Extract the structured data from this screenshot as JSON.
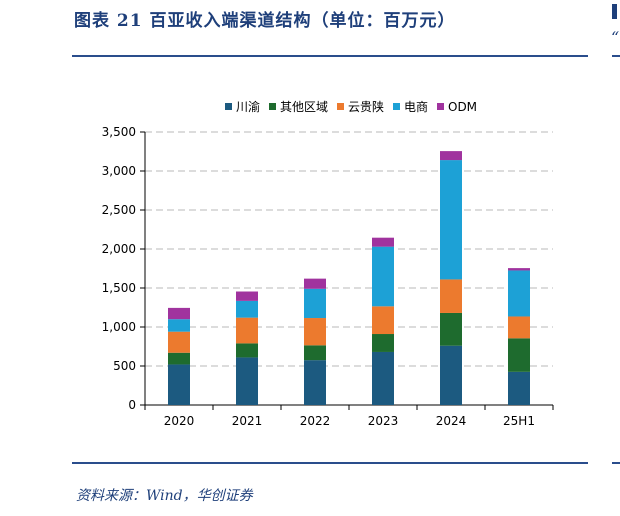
{
  "title": "图表 21   百亚收入端渠道结构（单位：百万元）",
  "source": "资料来源：Wind，华创证券",
  "chart_data": {
    "type": "bar",
    "stacked": true,
    "categories": [
      "2020",
      "2021",
      "2022",
      "2023",
      "2024",
      "25H1"
    ],
    "series": [
      {
        "name": "川渝",
        "color": "#1c5a80",
        "values": [
          520,
          610,
          575,
          680,
          760,
          425
        ]
      },
      {
        "name": "其他区域",
        "color": "#1e6b2e",
        "values": [
          150,
          180,
          190,
          230,
          420,
          430
        ]
      },
      {
        "name": "云贵陕",
        "color": "#ec7a2e",
        "values": [
          270,
          330,
          350,
          355,
          430,
          280
        ]
      },
      {
        "name": "电商",
        "color": "#1da1d6",
        "values": [
          160,
          215,
          375,
          765,
          1530,
          590
        ]
      },
      {
        "name": "ODM",
        "color": "#a0339e",
        "values": [
          145,
          120,
          130,
          115,
          115,
          30
        ]
      }
    ],
    "ylim": [
      0,
      3500
    ],
    "yticks": [
      "0",
      "500",
      "1,000",
      "1,500",
      "2,000",
      "2,500",
      "3,000",
      "3,500"
    ],
    "grid": true,
    "legend": "top-center"
  }
}
